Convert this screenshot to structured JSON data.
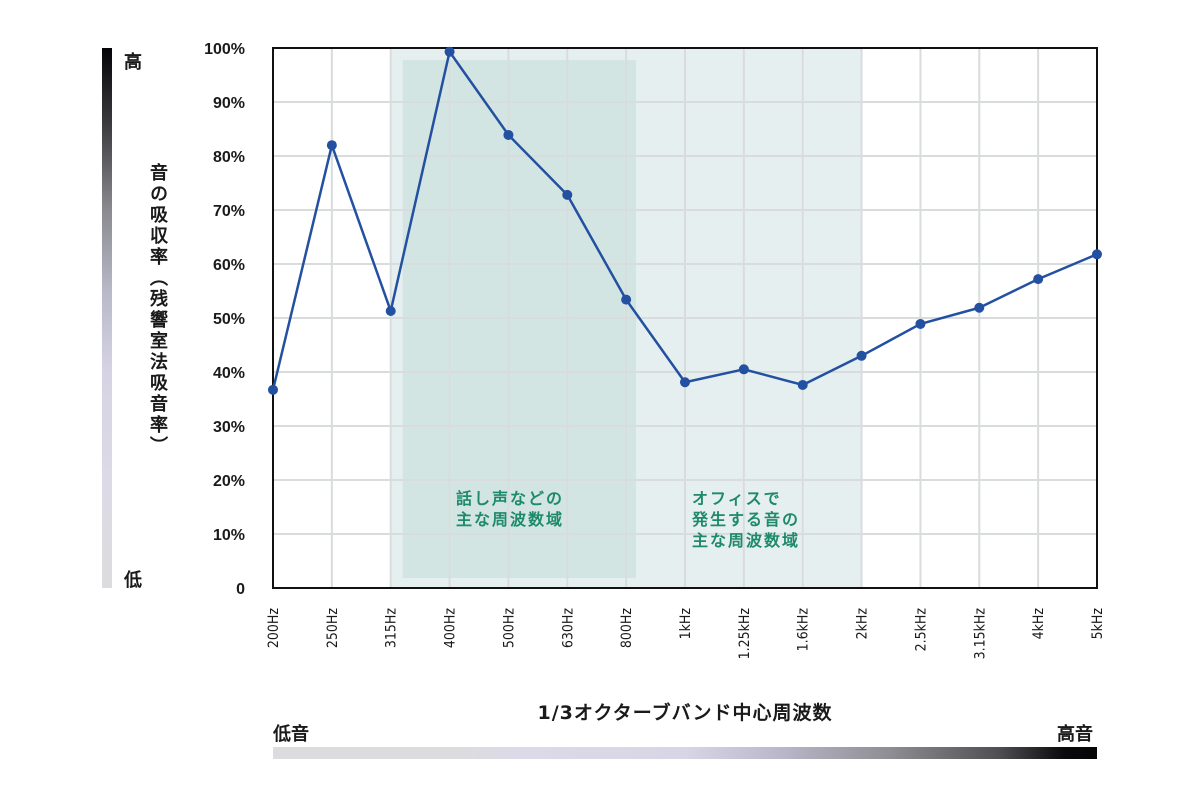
{
  "chart_data": {
    "type": "line",
    "title": "",
    "xlabel": "1/3オクターブバンド中心周波数",
    "ylabel": "音の吸収率（残響室法吸音率）",
    "categories": [
      "200Hz",
      "250Hz",
      "315Hz",
      "400Hz",
      "500Hz",
      "630Hz",
      "800Hz",
      "1kHz",
      "1.25kHz",
      "1.6kHz",
      "2kHz",
      "2.5kHz",
      "3.15kHz",
      "4kHz",
      "5kHz"
    ],
    "series": [
      {
        "name": "吸音率",
        "color": "#2350a0",
        "values": [
          36.7,
          82.0,
          51.3,
          99.3,
          83.9,
          72.8,
          53.4,
          38.1,
          40.5,
          37.6,
          43.0,
          48.9,
          51.9,
          57.2,
          61.8
        ]
      }
    ],
    "yticks": [
      "0",
      "10%",
      "20%",
      "30%",
      "40%",
      "50%",
      "60%",
      "70%",
      "80%",
      "90%",
      "100%"
    ],
    "ylim": [
      0,
      100
    ],
    "grid": true,
    "legend": null,
    "shaded_regions": [
      {
        "label": "オフィスで発生する音の主な周波数域",
        "from": "315Hz",
        "to": "2kHz",
        "color": "#e6eff0"
      },
      {
        "label": "話し声などの主な周波数域",
        "from": "315Hz",
        "to": "800Hz",
        "color": "#cfe3e0"
      }
    ],
    "annotations": [
      {
        "lines": [
          "話し声などの",
          "主な周波数域"
        ],
        "color": "#1f8a6b"
      },
      {
        "lines": [
          "オフィスで",
          "発生する音の",
          "主な周波数域"
        ],
        "color": "#1f8a6b"
      }
    ]
  },
  "axis": {
    "ylabel": "音の吸収率（残響室法吸音率）",
    "xlabel": "1/3オクターブバンド中心周波数",
    "y_scale_high": "高",
    "y_scale_low": "低",
    "x_scale_low": "低音",
    "x_scale_high": "高音"
  },
  "colors": {
    "line": "#2350a0",
    "annotation": "#1f8a6b",
    "grid": "#dcdcdc",
    "frame": "#111111"
  }
}
